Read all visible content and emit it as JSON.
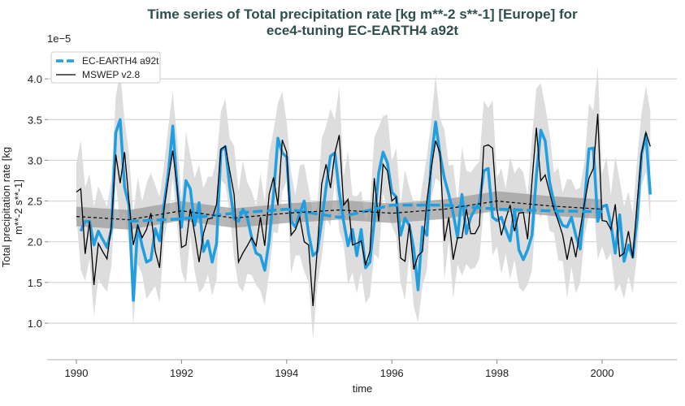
{
  "chart_data": {
    "type": "line",
    "title_line1": "Time series of Total precipitation rate [kg m**-2 s**-1] [Europe] for",
    "title_line2": "ece4-tuning EC-EARTH4 a92t",
    "xlabel": "time",
    "ylabel_line1": "Total precipitation rate [kg",
    "ylabel_line2": "m**-2 s**-1]",
    "y_multiplier": "1e−5",
    "xlim": [
      1989.45,
      2001.5
    ],
    "ylim": [
      0.55,
      4.3
    ],
    "x_ticks": [
      "1990",
      "1992",
      "1994",
      "1996",
      "1998",
      "2000"
    ],
    "y_ticks": [
      "1.0",
      "1.5",
      "2.0",
      "2.5",
      "3.0",
      "3.5",
      "4.0"
    ],
    "grid": "horizontal",
    "legend_position": "top-left",
    "colors": {
      "model": "#1f9ee0",
      "obs": "#000000",
      "band_light": "#dddddd",
      "band_dark": "#999999",
      "title": "#2f4f4f"
    },
    "series": [
      {
        "name": "EC-EARTH4 a92t",
        "style": "solid-thick",
        "start": "1990-02",
        "frequency": "monthly",
        "values": [
          2.13,
          2.25,
          2.25,
          1.96,
          2.13,
          2.03,
          1.93,
          2.15,
          3.34,
          3.5,
          2.67,
          2.45,
          1.28,
          2.2,
          1.95,
          1.75,
          1.78,
          2.16,
          2.01,
          2.45,
          2.84,
          3.42,
          2.67,
          2.18,
          2.75,
          2.65,
          2.2,
          2.48,
          1.88,
          2.01,
          1.75,
          1.98,
          3.12,
          3.17,
          2.67,
          2.28,
          2.25,
          2.4,
          2.3,
          2.05,
          1.86,
          1.83,
          1.65,
          2.01,
          2.58,
          3.27,
          3.09,
          3.04,
          2.25,
          2.18,
          2.35,
          2.5,
          2.1,
          1.83,
          1.88,
          2.25,
          2.67,
          3.05,
          3.09,
          2.61,
          2.25,
          1.95,
          2.15,
          1.83,
          2.15,
          1.68,
          1.75,
          2.25,
          2.84,
          3.1,
          2.97,
          2.61,
          2.55,
          2.08,
          2.29,
          2.2,
          1.91,
          1.41,
          2.18,
          2.08,
          3.0,
          3.47,
          3.07,
          2.78,
          2.58,
          2.35,
          2.05,
          2.58,
          2.1,
          2.3,
          2.4,
          2.48,
          2.87,
          2.9,
          2.3,
          2.26,
          2.3,
          2.15,
          2.01,
          2.4,
          1.9,
          1.78,
          1.9,
          2.08,
          2.81,
          3.37,
          3.24,
          2.74,
          2.48,
          2.31,
          2.2,
          2.18,
          2.3,
          2.08,
          1.91,
          2.48,
          3.14,
          3.15,
          2.25,
          2.43,
          2.45,
          2.21,
          1.86,
          2.33,
          1.76,
          1.96,
          1.81,
          2.28,
          3.07,
          3.32,
          2.58
        ]
      },
      {
        "name": "MSWEP v2.8",
        "style": "solid-thin",
        "start": "1990-01",
        "frequency": "monthly",
        "values": [
          2.61,
          2.65,
          1.85,
          2.25,
          1.47,
          1.98,
          1.88,
          1.79,
          2.2,
          3.07,
          2.72,
          3.1,
          2.5,
          1.96,
          2.2,
          2.05,
          2.15,
          2.35,
          1.88,
          1.68,
          2.4,
          2.77,
          3.12,
          2.67,
          1.93,
          1.96,
          2.4,
          2.1,
          1.75,
          2.1,
          2.28,
          2.29,
          2.46,
          3.14,
          3.17,
          2.87,
          2.58,
          1.75,
          1.86,
          1.95,
          2.05,
          1.95,
          2.3,
          1.95,
          2.58,
          2.79,
          2.45,
          3.25,
          3.1,
          2.08,
          2.15,
          2.3,
          2.0,
          1.96,
          1.21,
          1.91,
          2.71,
          2.95,
          2.66,
          3.09,
          3.31,
          2.45,
          2.52,
          1.96,
          1.98,
          2.01,
          1.71,
          1.88,
          2.78,
          2.25,
          2.95,
          2.87,
          2.5,
          2.55,
          1.8,
          1.76,
          2.22,
          1.66,
          1.83,
          1.88,
          2.5,
          2.9,
          3.24,
          3.09,
          2.01,
          2.3,
          1.78,
          2.05,
          2.05,
          2.4,
          2.1,
          2.1,
          2.2,
          3.17,
          3.19,
          3.15,
          2.4,
          2.08,
          2.28,
          2.45,
          2.13,
          2.35,
          2.36,
          2.03,
          2.74,
          3.4,
          2.75,
          2.82,
          2.61,
          2.4,
          2.25,
          2.08,
          1.78,
          2.06,
          1.81,
          2.15,
          2.48,
          2.78,
          2.9,
          3.57,
          2.26,
          2.25,
          2.15,
          2.46,
          1.82,
          1.86,
          2.13,
          1.8,
          2.48,
          3.09,
          3.34,
          3.17
        ]
      }
    ],
    "trends": [
      {
        "of": "EC-EARTH4 a92t",
        "style": "dashed-thick",
        "x": [
          1991,
          1992,
          1993,
          1994,
          1995,
          1996,
          1997,
          1998,
          1999,
          2000
        ],
        "values": [
          2.25,
          2.28,
          2.35,
          2.4,
          2.3,
          2.45,
          2.45,
          2.4,
          2.38,
          2.37
        ]
      },
      {
        "of": "MSWEP v2.8",
        "style": "dashed-thin",
        "x": [
          1990,
          1991,
          1992,
          1993,
          1994,
          1995,
          1996,
          1997,
          1998,
          1999,
          2000
        ],
        "values": [
          2.31,
          2.27,
          2.38,
          2.29,
          2.35,
          2.39,
          2.35,
          2.4,
          2.5,
          2.44,
          2.4
        ]
      }
    ]
  }
}
